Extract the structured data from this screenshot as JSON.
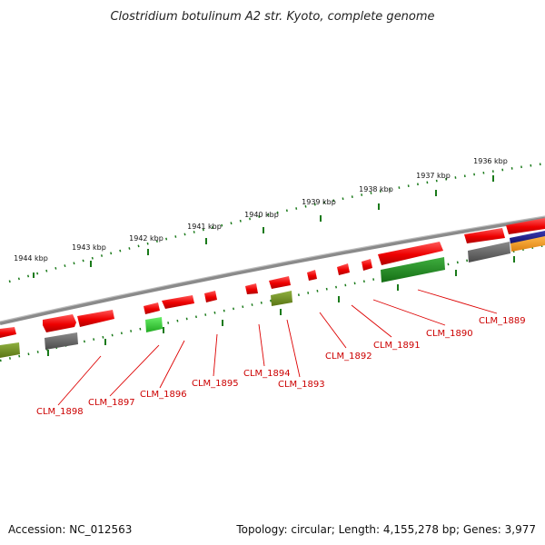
{
  "title": "Clostridium botulinum A2 str. Kyoto, complete genome",
  "footer": {
    "accession": "Accession: NC_012563",
    "summary": "Topology: circular; Length: 4,155,278 bp; Genes: 3,977"
  },
  "ticks": [
    "1944 kbp",
    "1943 kbp",
    "1942 kbp",
    "1941 kbp",
    "1940 kbp",
    "1939 kbp",
    "1938 kbp",
    "1937 kbp",
    "1936 kbp"
  ],
  "gene_labels": [
    "CLM_1898",
    "CLM_1897",
    "CLM_1896",
    "CLM_1895",
    "CLM_1894",
    "CLM_1893",
    "CLM_1892",
    "CLM_1891",
    "CLM_1890",
    "CLM_1889"
  ],
  "colors": {
    "forward_gene": "#ee0000",
    "rRNA_like_green": "#1a8c1a",
    "light_green": "#33cc33",
    "olive": "#6b8c1a",
    "gray_block": "#666666",
    "navy": "#1a1a8c",
    "orange": "#f29a1a",
    "backbone": "#888888",
    "tick_green": "#1a7a1a",
    "label_red": "#cc0000"
  }
}
